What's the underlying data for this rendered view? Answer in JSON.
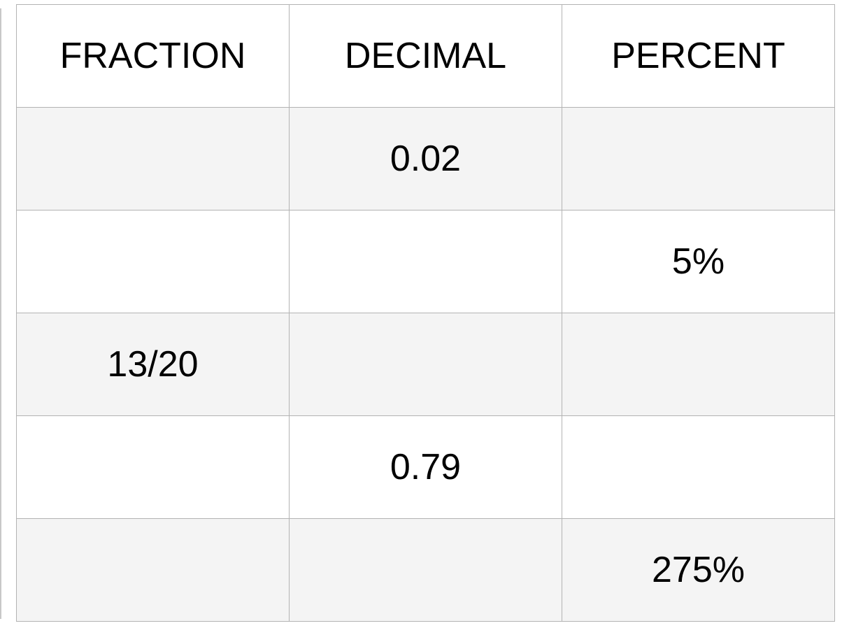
{
  "table": {
    "header": [
      "FRACTION",
      "DECIMAL",
      "PERCENT"
    ],
    "rows": [
      [
        null,
        "0.02",
        null
      ],
      [
        null,
        null,
        "5%"
      ],
      [
        "13/20",
        null,
        null
      ],
      [
        null,
        "0.79",
        null
      ],
      [
        null,
        null,
        "275%"
      ]
    ]
  }
}
